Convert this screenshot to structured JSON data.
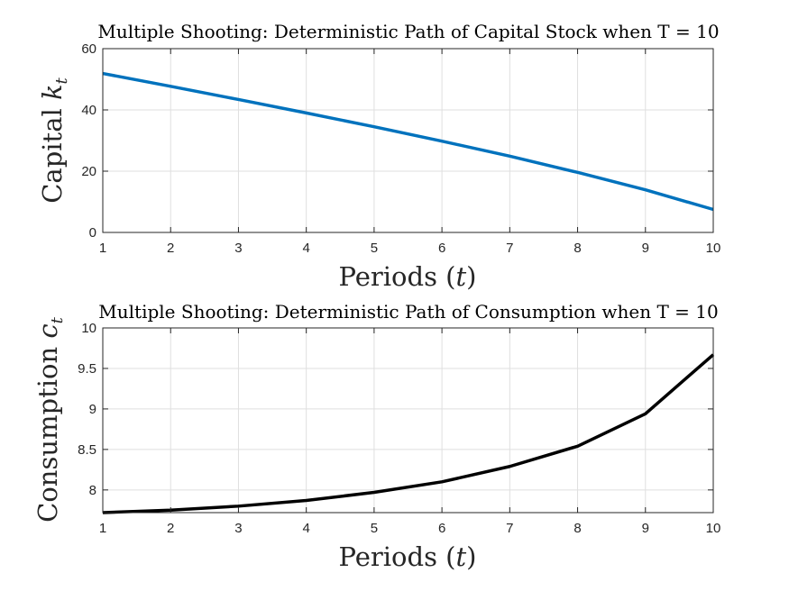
{
  "chart_data": [
    {
      "type": "line",
      "title": "Multiple Shooting: Deterministic Path of Capital Stock when T = 10",
      "xlabel": "Periods (t)",
      "ylabel": "Capital k_t",
      "xlim": [
        1,
        10
      ],
      "ylim": [
        0,
        60
      ],
      "xticks": [
        "1",
        "2",
        "3",
        "4",
        "5",
        "6",
        "7",
        "8",
        "9",
        "10"
      ],
      "yticks": [
        "0",
        "20",
        "40",
        "60"
      ],
      "grid": true,
      "series": [
        {
          "color": "#0072BD",
          "x": [
            1,
            2,
            3,
            4,
            5,
            6,
            7,
            8,
            9,
            10
          ],
          "y": [
            51.9,
            47.7,
            43.4,
            39.0,
            34.5,
            29.8,
            24.9,
            19.6,
            13.9,
            7.5
          ]
        }
      ]
    },
    {
      "type": "line",
      "title": "Multiple Shooting: Deterministic Path of Consumption when T = 10",
      "xlabel": "Periods (t)",
      "ylabel": "Consumption c_t",
      "xlim": [
        1,
        10
      ],
      "ylim": [
        7.72,
        10
      ],
      "xticks": [
        "1",
        "2",
        "3",
        "4",
        "5",
        "6",
        "7",
        "8",
        "9",
        "10"
      ],
      "yticks": [
        "8",
        "8.5",
        "9",
        "9.5",
        "10"
      ],
      "grid": true,
      "series": [
        {
          "color": "#000000",
          "x": [
            1,
            2,
            3,
            4,
            5,
            6,
            7,
            8,
            9,
            10
          ],
          "y": [
            7.72,
            7.75,
            7.8,
            7.87,
            7.97,
            8.1,
            8.29,
            8.54,
            8.94,
            9.67
          ]
        }
      ]
    }
  ]
}
